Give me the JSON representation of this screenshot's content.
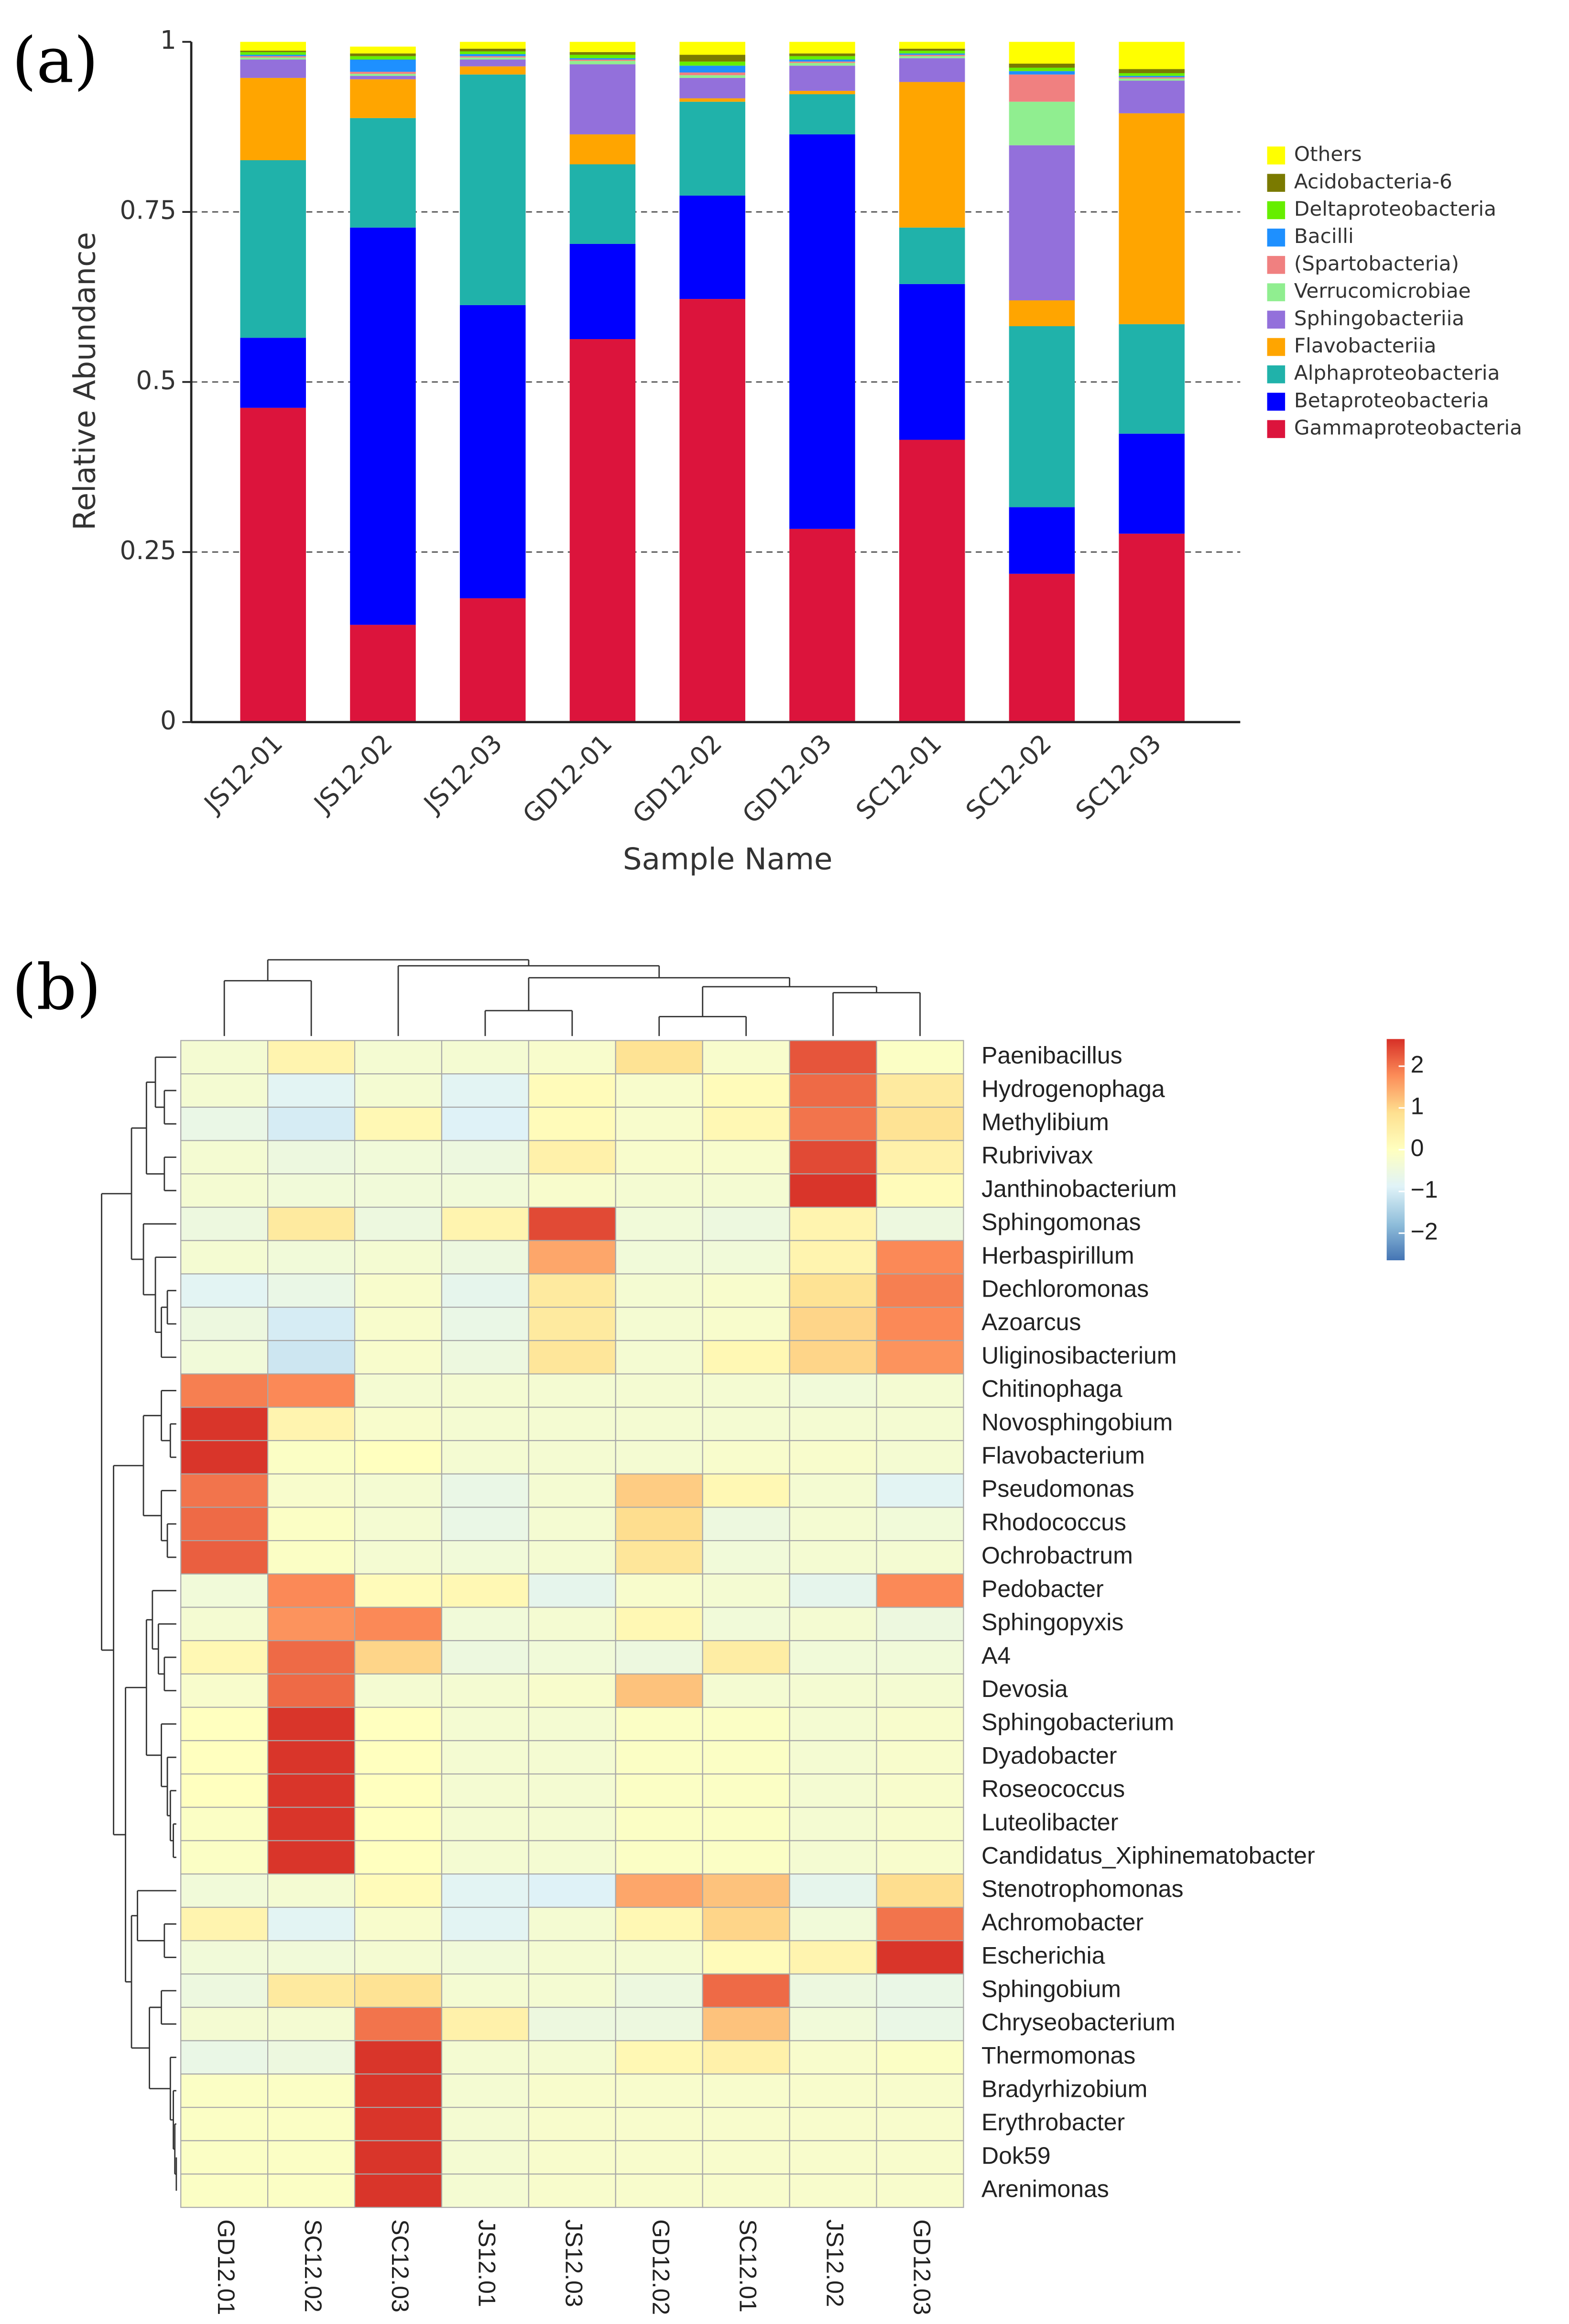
{
  "chart_data": [
    {
      "type": "bar",
      "panel": "(a)",
      "xlabel": "Sample Name",
      "ylabel": "Relative Abundance",
      "categories": [
        "JS12-01",
        "JS12-02",
        "JS12-03",
        "GD12-01",
        "GD12-02",
        "GD12-03",
        "SC12-01",
        "SC12-02",
        "SC12-03"
      ],
      "series": [
        {
          "name": "Gammaproteobacteria",
          "color": "#dc143c",
          "values": [
            0.462,
            0.143,
            0.182,
            0.563,
            0.622,
            0.284,
            0.415,
            0.218,
            0.277
          ]
        },
        {
          "name": "Betaproteobacteria",
          "color": "#0000ff",
          "values": [
            0.103,
            0.584,
            0.431,
            0.14,
            0.152,
            0.58,
            0.229,
            0.098,
            0.147
          ]
        },
        {
          "name": "Alphaproteobacteria",
          "color": "#20b2aa",
          "values": [
            0.261,
            0.161,
            0.339,
            0.117,
            0.138,
            0.059,
            0.083,
            0.266,
            0.161
          ]
        },
        {
          "name": "Flavobacteriia",
          "color": "#ffa500",
          "values": [
            0.121,
            0.057,
            0.012,
            0.044,
            0.005,
            0.005,
            0.214,
            0.038,
            0.31
          ]
        },
        {
          "name": "Sphingobacteriia",
          "color": "#9370db",
          "values": [
            0.027,
            0.005,
            0.01,
            0.103,
            0.03,
            0.037,
            0.035,
            0.228,
            0.048
          ]
        },
        {
          "name": "Verrucomicrobiae",
          "color": "#90ee90",
          "values": [
            0.003,
            0.003,
            0.003,
            0.005,
            0.004,
            0.004,
            0.003,
            0.064,
            0.003
          ]
        },
        {
          "name": "(Spartobacteria)",
          "color": "#f08080",
          "values": [
            0.002,
            0.003,
            0.002,
            0.002,
            0.004,
            0.002,
            0.002,
            0.04,
            0.002
          ]
        },
        {
          "name": "Bacilli",
          "color": "#1e90ff",
          "values": [
            0.002,
            0.018,
            0.003,
            0.002,
            0.01,
            0.003,
            0.002,
            0.005,
            0.002
          ]
        },
        {
          "name": "Deltaproteobacteria",
          "color": "#66ee00",
          "values": [
            0.004,
            0.005,
            0.004,
            0.005,
            0.006,
            0.005,
            0.004,
            0.005,
            0.004
          ]
        },
        {
          "name": "Acidobacteria-6",
          "color": "#7a7a00",
          "values": [
            0.002,
            0.004,
            0.004,
            0.004,
            0.01,
            0.004,
            0.003,
            0.006,
            0.006
          ]
        },
        {
          "name": "Others",
          "color": "#ffff00",
          "values": [
            0.013,
            0.01,
            0.01,
            0.015,
            0.019,
            0.017,
            0.01,
            0.032,
            0.04
          ]
        }
      ],
      "ylim": [
        0,
        1
      ],
      "yticks": [
        0,
        0.25,
        0.5,
        0.75,
        1
      ],
      "grid": true
    },
    {
      "type": "heatmap",
      "panel": "(b)",
      "columns": [
        "GD12.01",
        "SC12.02",
        "SC12.03",
        "JS12.01",
        "JS12.03",
        "GD12.02",
        "SC12.01",
        "JS12.02",
        "GD12.03"
      ],
      "rows": [
        "Paenibacillus",
        "Hydrogenophaga",
        "Methylibium",
        "Rubrivivax",
        "Janthinobacterium",
        "Sphingomonas",
        "Herbaspirillum",
        "Dechloromonas",
        "Azoarcus",
        "Uliginosibacterium",
        "Chitinophaga",
        "Novosphingobium",
        "Flavobacterium",
        "Pseudomonas",
        "Rhodococcus",
        "Ochrobactrum",
        "Pedobacter",
        "Sphingopyxis",
        "A4",
        "Devosia",
        "Sphingobacterium",
        "Dyadobacter",
        "Roseococcus",
        "Luteolibacter",
        "Candidatus_Xiphinematobacter",
        "Stenotrophomonas",
        "Achromobacter",
        "Escherichia",
        "Sphingobium",
        "Chryseobacterium",
        "Thermomonas",
        "Bradyrhizobium",
        "Erythrobacter",
        "Dok59",
        "Arenimonas"
      ],
      "values": [
        [
          -0.3,
          0.3,
          -0.3,
          -0.3,
          -0.2,
          0.8,
          -0.2,
          2.3,
          -0.1
        ],
        [
          -0.3,
          -0.8,
          -0.3,
          -0.8,
          0.1,
          -0.2,
          0.1,
          2.1,
          0.6
        ],
        [
          -0.6,
          -1.0,
          0.2,
          -0.9,
          0.1,
          -0.2,
          0.2,
          2.0,
          0.8
        ],
        [
          -0.3,
          -0.5,
          -0.4,
          -0.5,
          0.4,
          -0.2,
          -0.2,
          2.4,
          0.4
        ],
        [
          -0.3,
          -0.4,
          -0.4,
          -0.4,
          -0.2,
          -0.3,
          -0.3,
          2.6,
          0.1
        ],
        [
          -0.5,
          0.6,
          -0.5,
          0.3,
          2.4,
          -0.4,
          -0.5,
          0.3,
          -0.5
        ],
        [
          -0.3,
          -0.4,
          -0.3,
          -0.5,
          1.5,
          -0.4,
          -0.4,
          0.3,
          1.8
        ],
        [
          -0.8,
          -0.6,
          -0.2,
          -0.7,
          0.6,
          -0.3,
          -0.2,
          0.8,
          1.9
        ],
        [
          -0.5,
          -1.0,
          -0.2,
          -0.6,
          0.6,
          -0.3,
          -0.2,
          1.0,
          1.8
        ],
        [
          -0.4,
          -1.1,
          -0.2,
          -0.5,
          0.7,
          -0.3,
          0.2,
          1.0,
          1.7
        ],
        [
          1.9,
          1.8,
          -0.3,
          -0.3,
          -0.3,
          -0.3,
          -0.3,
          -0.4,
          -0.3
        ],
        [
          2.6,
          0.3,
          -0.2,
          -0.3,
          -0.3,
          -0.3,
          -0.3,
          -0.3,
          -0.3
        ],
        [
          2.6,
          -0.1,
          0.0,
          -0.3,
          -0.3,
          -0.3,
          -0.2,
          -0.2,
          -0.3
        ],
        [
          2.0,
          -0.2,
          -0.3,
          -0.6,
          -0.3,
          1.1,
          0.2,
          -0.3,
          -0.8
        ],
        [
          2.1,
          -0.1,
          -0.3,
          -0.6,
          -0.3,
          0.9,
          -0.5,
          -0.3,
          -0.4
        ],
        [
          2.2,
          -0.1,
          -0.3,
          -0.4,
          -0.3,
          0.7,
          -0.4,
          -0.3,
          -0.3
        ],
        [
          -0.4,
          1.8,
          0.1,
          0.2,
          -0.7,
          -0.2,
          -0.3,
          -0.7,
          1.8
        ],
        [
          -0.3,
          1.7,
          1.8,
          -0.4,
          -0.3,
          0.2,
          -0.4,
          -0.3,
          -0.5
        ],
        [
          0.2,
          2.1,
          1.0,
          -0.5,
          -0.4,
          -0.5,
          0.5,
          -0.4,
          -0.4
        ],
        [
          -0.2,
          2.1,
          -0.3,
          -0.3,
          -0.2,
          1.2,
          -0.3,
          -0.3,
          -0.3
        ],
        [
          0.0,
          2.6,
          0.0,
          -0.3,
          -0.3,
          -0.1,
          -0.1,
          -0.3,
          -0.2
        ],
        [
          0.0,
          2.6,
          0.0,
          -0.3,
          -0.3,
          -0.1,
          -0.1,
          -0.3,
          -0.2
        ],
        [
          0.0,
          2.6,
          0.0,
          -0.3,
          -0.3,
          -0.1,
          -0.1,
          -0.3,
          -0.2
        ],
        [
          -0.1,
          2.6,
          0.0,
          -0.3,
          -0.3,
          -0.1,
          -0.1,
          -0.3,
          -0.2
        ],
        [
          -0.1,
          2.6,
          0.0,
          -0.3,
          -0.3,
          -0.1,
          -0.1,
          -0.3,
          -0.2
        ],
        [
          -0.4,
          -0.3,
          0.1,
          -0.8,
          -0.9,
          1.5,
          1.2,
          -0.7,
          0.9
        ],
        [
          0.3,
          -0.8,
          -0.2,
          -0.8,
          -0.3,
          0.2,
          1.0,
          -0.4,
          2.0
        ],
        [
          -0.4,
          -0.4,
          -0.3,
          -0.4,
          -0.3,
          -0.3,
          0.1,
          0.3,
          2.6
        ],
        [
          -0.5,
          0.6,
          0.8,
          -0.3,
          -0.3,
          -0.5,
          2.1,
          -0.5,
          -0.6
        ],
        [
          -0.3,
          -0.3,
          2.0,
          0.4,
          -0.5,
          -0.5,
          1.2,
          -0.4,
          -0.6
        ],
        [
          -0.6,
          -0.5,
          2.6,
          -0.3,
          -0.3,
          0.2,
          0.4,
          -0.2,
          -0.1
        ],
        [
          -0.1,
          -0.1,
          2.6,
          -0.3,
          -0.2,
          -0.2,
          -0.2,
          -0.2,
          -0.2
        ],
        [
          -0.1,
          -0.1,
          2.6,
          -0.3,
          -0.2,
          -0.2,
          -0.2,
          -0.2,
          -0.2
        ],
        [
          -0.1,
          -0.1,
          2.6,
          -0.3,
          -0.2,
          -0.2,
          -0.2,
          -0.2,
          -0.2
        ],
        [
          -0.1,
          -0.1,
          2.6,
          -0.3,
          -0.2,
          -0.2,
          -0.2,
          -0.2,
          -0.2
        ]
      ],
      "zlim": [
        -2.65,
        2.65
      ],
      "zticks": [
        2,
        1,
        0,
        {
          "value": -1,
          "label": "−1"
        },
        {
          "value": -2,
          "label": "−2"
        }
      ],
      "colors": [
        "#4575b4",
        "#91bfdb",
        "#e0f3f8",
        "#ffffbf",
        "#fee090",
        "#fc8d59",
        "#d73027"
      ]
    }
  ]
}
